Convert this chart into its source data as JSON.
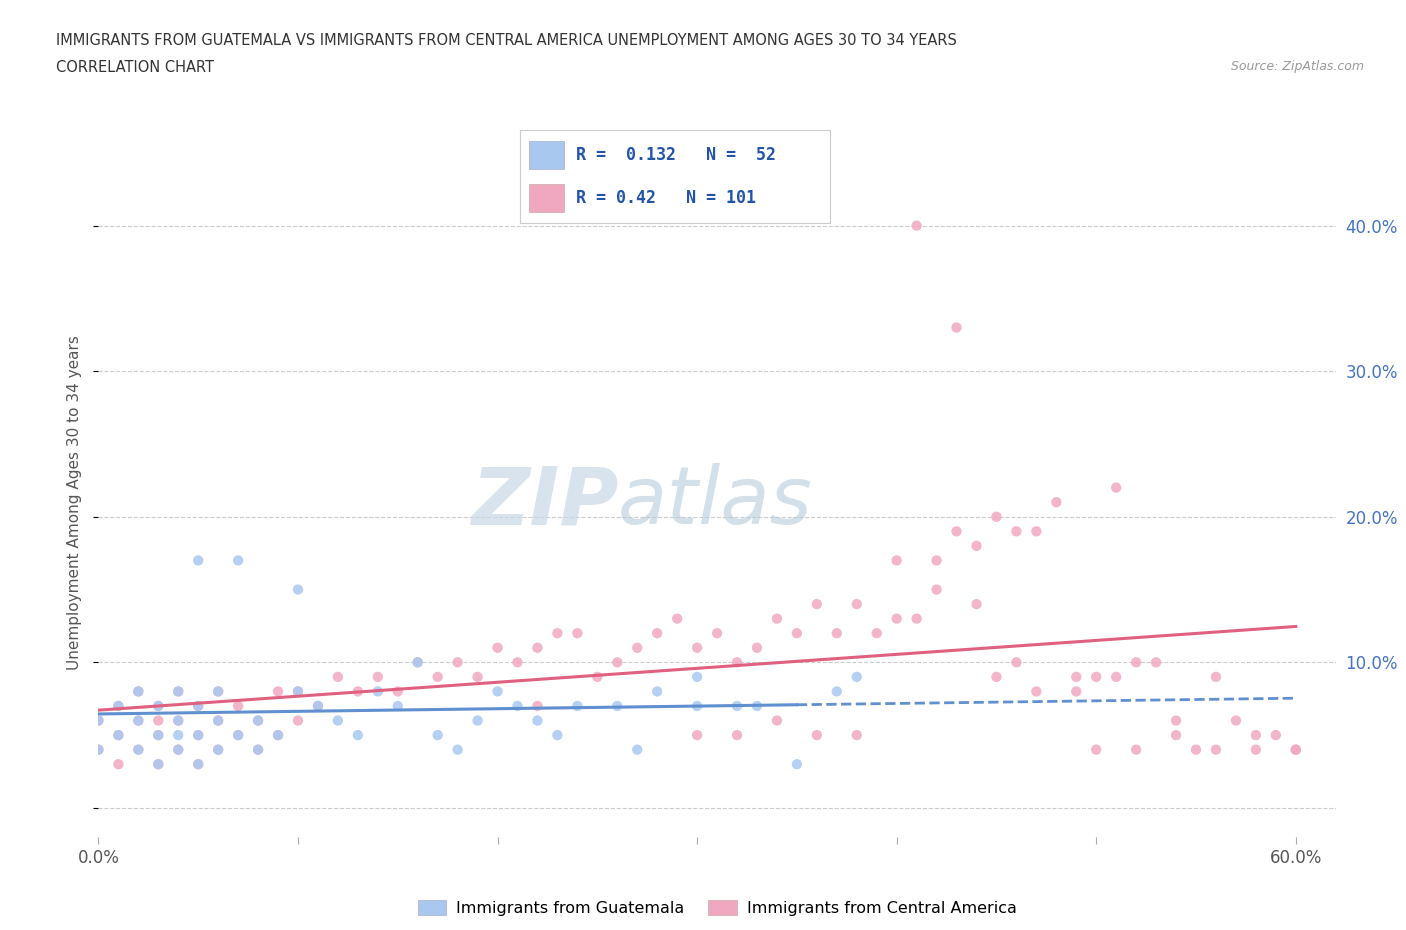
{
  "title_line1": "IMMIGRANTS FROM GUATEMALA VS IMMIGRANTS FROM CENTRAL AMERICA UNEMPLOYMENT AMONG AGES 30 TO 34 YEARS",
  "title_line2": "CORRELATION CHART",
  "source_text": "Source: ZipAtlas.com",
  "ylabel": "Unemployment Among Ages 30 to 34 years",
  "xlim": [
    0.0,
    0.62
  ],
  "ylim": [
    -0.02,
    0.44
  ],
  "x_ticks": [
    0.0,
    0.1,
    0.2,
    0.3,
    0.4,
    0.5,
    0.6
  ],
  "y_ticks": [
    0.0,
    0.1,
    0.2,
    0.3,
    0.4
  ],
  "guatemala_color": "#a8c8f0",
  "central_america_color": "#f0a8c0",
  "guatemala_line_color": "#6090d0",
  "central_america_line_color": "#e06080",
  "right_label_color": "#4472c4",
  "guatemala_R": 0.132,
  "guatemala_N": 52,
  "central_america_R": 0.42,
  "central_america_N": 101,
  "watermark_zip": "ZIP",
  "watermark_atlas": "atlas",
  "background_color": "#ffffff",
  "grid_color": "#cccccc",
  "guatemala_scatter_x": [
    0.0,
    0.0,
    0.01,
    0.01,
    0.02,
    0.02,
    0.02,
    0.03,
    0.03,
    0.03,
    0.04,
    0.04,
    0.04,
    0.04,
    0.05,
    0.05,
    0.05,
    0.05,
    0.06,
    0.06,
    0.06,
    0.07,
    0.07,
    0.08,
    0.08,
    0.09,
    0.1,
    0.1,
    0.11,
    0.12,
    0.13,
    0.14,
    0.15,
    0.16,
    0.17,
    0.18,
    0.19,
    0.2,
    0.21,
    0.22,
    0.23,
    0.24,
    0.26,
    0.27,
    0.28,
    0.3,
    0.3,
    0.32,
    0.33,
    0.35,
    0.37,
    0.38
  ],
  "guatemala_scatter_y": [
    0.04,
    0.06,
    0.05,
    0.07,
    0.04,
    0.06,
    0.08,
    0.03,
    0.05,
    0.07,
    0.04,
    0.05,
    0.06,
    0.08,
    0.03,
    0.05,
    0.07,
    0.17,
    0.04,
    0.06,
    0.08,
    0.05,
    0.17,
    0.04,
    0.06,
    0.05,
    0.15,
    0.08,
    0.07,
    0.06,
    0.05,
    0.08,
    0.07,
    0.1,
    0.05,
    0.04,
    0.06,
    0.08,
    0.07,
    0.06,
    0.05,
    0.07,
    0.07,
    0.04,
    0.08,
    0.07,
    0.09,
    0.07,
    0.07,
    0.03,
    0.08,
    0.09
  ],
  "central_america_scatter_x": [
    0.0,
    0.0,
    0.01,
    0.01,
    0.01,
    0.02,
    0.02,
    0.02,
    0.03,
    0.03,
    0.03,
    0.03,
    0.04,
    0.04,
    0.04,
    0.05,
    0.05,
    0.05,
    0.06,
    0.06,
    0.06,
    0.07,
    0.07,
    0.08,
    0.08,
    0.09,
    0.09,
    0.1,
    0.1,
    0.11,
    0.12,
    0.13,
    0.14,
    0.15,
    0.16,
    0.17,
    0.18,
    0.19,
    0.2,
    0.21,
    0.22,
    0.23,
    0.24,
    0.25,
    0.26,
    0.27,
    0.28,
    0.29,
    0.3,
    0.31,
    0.32,
    0.33,
    0.34,
    0.35,
    0.36,
    0.37,
    0.38,
    0.39,
    0.4,
    0.41,
    0.42,
    0.43,
    0.44,
    0.45,
    0.46,
    0.47,
    0.48,
    0.49,
    0.5,
    0.51,
    0.52,
    0.53,
    0.54,
    0.55,
    0.56,
    0.57,
    0.58,
    0.59,
    0.6,
    0.41,
    0.43,
    0.45,
    0.47,
    0.49,
    0.51,
    0.3,
    0.32,
    0.34,
    0.36,
    0.38,
    0.4,
    0.42,
    0.44,
    0.46,
    0.5,
    0.52,
    0.54,
    0.56,
    0.58,
    0.6,
    0.22
  ],
  "central_america_scatter_y": [
    0.04,
    0.06,
    0.03,
    0.05,
    0.07,
    0.04,
    0.06,
    0.08,
    0.03,
    0.05,
    0.07,
    0.06,
    0.04,
    0.06,
    0.08,
    0.03,
    0.05,
    0.07,
    0.04,
    0.06,
    0.08,
    0.05,
    0.07,
    0.04,
    0.06,
    0.05,
    0.08,
    0.06,
    0.08,
    0.07,
    0.09,
    0.08,
    0.09,
    0.08,
    0.1,
    0.09,
    0.1,
    0.09,
    0.11,
    0.1,
    0.11,
    0.12,
    0.12,
    0.09,
    0.1,
    0.11,
    0.12,
    0.13,
    0.11,
    0.12,
    0.1,
    0.11,
    0.13,
    0.12,
    0.14,
    0.12,
    0.14,
    0.12,
    0.13,
    0.13,
    0.15,
    0.19,
    0.14,
    0.09,
    0.1,
    0.08,
    0.21,
    0.08,
    0.09,
    0.22,
    0.1,
    0.1,
    0.06,
    0.04,
    0.09,
    0.06,
    0.05,
    0.05,
    0.04,
    0.4,
    0.33,
    0.2,
    0.19,
    0.09,
    0.09,
    0.05,
    0.05,
    0.06,
    0.05,
    0.05,
    0.17,
    0.17,
    0.18,
    0.19,
    0.04,
    0.04,
    0.05,
    0.04,
    0.04,
    0.04,
    0.07
  ]
}
